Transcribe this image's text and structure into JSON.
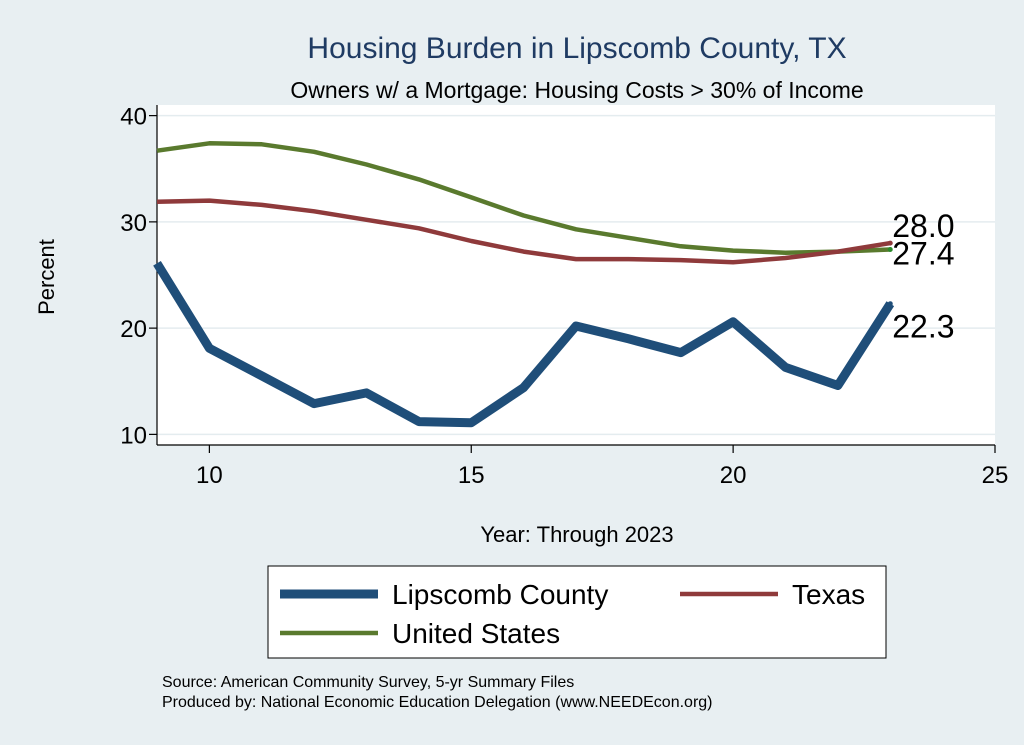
{
  "chart_data": {
    "type": "line",
    "title": "Housing Burden in Lipscomb County, TX",
    "subtitle": "Owners w/ a Mortgage: Housing Costs > 30% of Income",
    "xlabel": "Year: Through 2023",
    "ylabel": "Percent",
    "xlim": [
      9,
      25
    ],
    "ylim": [
      9,
      41
    ],
    "xticks": [
      10,
      15,
      20,
      25
    ],
    "yticks": [
      10,
      20,
      30,
      40
    ],
    "grid": true,
    "legend_position": "bottom",
    "series": [
      {
        "name": "Lipscomb County",
        "color": "#1f4e79",
        "x": [
          9,
          10,
          11,
          12,
          13,
          14,
          15,
          16,
          17,
          18,
          19,
          20,
          21,
          22,
          23
        ],
        "y": [
          26.1,
          18.1,
          15.5,
          12.9,
          13.9,
          11.2,
          11.1,
          14.4,
          20.2,
          19.0,
          17.7,
          20.6,
          16.3,
          14.6,
          22.3
        ]
      },
      {
        "name": "Texas",
        "color": "#8f3a3b",
        "x": [
          9,
          10,
          11,
          12,
          13,
          14,
          15,
          16,
          17,
          18,
          19,
          20,
          21,
          22,
          23
        ],
        "y": [
          31.9,
          32.0,
          31.6,
          31.0,
          30.2,
          29.4,
          28.2,
          27.2,
          26.5,
          26.5,
          26.4,
          26.2,
          26.6,
          27.2,
          28.0
        ]
      },
      {
        "name": "United States",
        "color": "#5a7a2e",
        "x": [
          9,
          10,
          11,
          12,
          13,
          14,
          15,
          16,
          17,
          18,
          19,
          20,
          21,
          22,
          23
        ],
        "y": [
          36.7,
          37.4,
          37.3,
          36.6,
          35.4,
          34.0,
          32.3,
          30.6,
          29.3,
          28.5,
          27.7,
          27.3,
          27.1,
          27.2,
          27.4
        ]
      }
    ],
    "end_labels": [
      {
        "series": "Texas",
        "text": "28.0"
      },
      {
        "series": "United States",
        "text": "27.4"
      },
      {
        "series": "Lipscomb County",
        "text": "22.3"
      }
    ]
  },
  "notes": {
    "source": "Source: American Community Survey, 5-yr Summary Files",
    "produced_by": "Produced by: National Economic Education Delegation (www.NEEDEcon.org)"
  }
}
